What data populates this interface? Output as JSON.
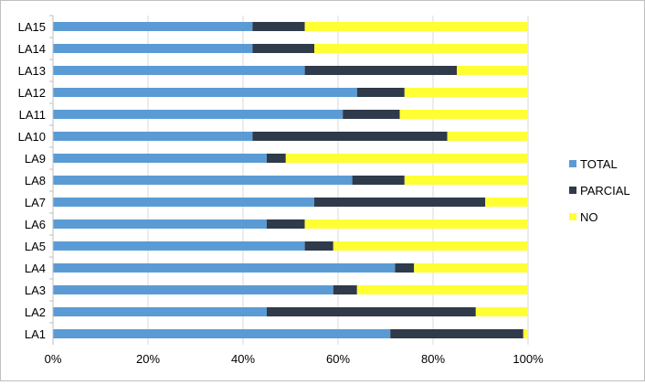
{
  "chart_data": {
    "type": "bar",
    "orientation": "horizontal",
    "stacking": "percent",
    "categories": [
      "LA1",
      "LA2",
      "LA3",
      "LA4",
      "LA5",
      "LA6",
      "LA7",
      "LA8",
      "LA9",
      "LA10",
      "LA11",
      "LA12",
      "LA13",
      "LA14",
      "LA15"
    ],
    "series": [
      {
        "name": "TOTAL",
        "color": "#5b9bd5",
        "values": [
          71,
          45,
          59,
          72,
          53,
          45,
          55,
          63,
          45,
          42,
          61,
          64,
          53,
          42,
          42
        ]
      },
      {
        "name": "PARCIAL",
        "color": "#2f3a4a",
        "values": [
          28,
          44,
          5,
          4,
          6,
          8,
          36,
          11,
          4,
          41,
          12,
          10,
          32,
          13,
          11
        ]
      },
      {
        "name": "NO",
        "color": "#ffff33",
        "values": [
          1,
          11,
          36,
          24,
          41,
          47,
          9,
          26,
          51,
          17,
          27,
          26,
          15,
          45,
          47
        ]
      }
    ],
    "x_ticks": [
      "0%",
      "20%",
      "40%",
      "60%",
      "80%",
      "100%"
    ],
    "xlim": [
      0,
      100
    ],
    "grid": "vertical",
    "legend_position": "right"
  }
}
